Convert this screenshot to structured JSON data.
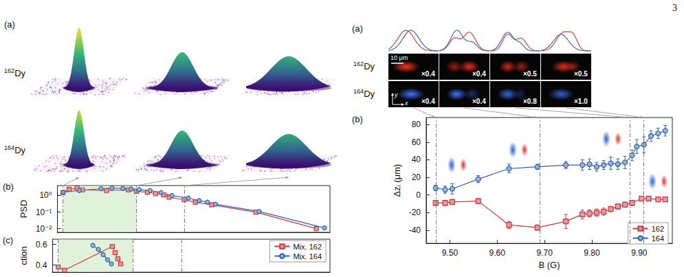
{
  "page_number": "3",
  "left_figure": {
    "panel_a": {
      "label": "(a)",
      "rows": [
        {
          "mass": "162",
          "element": "Dy"
        },
        {
          "mass": "164",
          "element": "Dy"
        }
      ]
    }
  },
  "right_figure": {
    "panel_a": {
      "label": "(a)",
      "scale_bar": "10 μm",
      "axes": [
        "x",
        "y"
      ],
      "rows": [
        {
          "mass": "162",
          "element": "Dy",
          "scales": [
            "×0.4",
            "×0.4",
            "×0.5",
            "×0.5"
          ]
        },
        {
          "mass": "164",
          "element": "Dy",
          "scales": [
            "×0.4",
            "×0.4",
            "×0.8",
            "×1.0"
          ]
        }
      ]
    }
  },
  "chart_data": [
    {
      "title": "(b)",
      "type": "line",
      "y_label": "PSD",
      "log": "y",
      "tick_labels": "y",
      "xlim": [
        0,
        100
      ],
      "ylim": [
        0.006,
        4
      ],
      "yticks": [
        {
          "value": 0.01,
          "label": "10⁻²"
        },
        {
          "value": 0.1,
          "label": "10⁻¹"
        },
        {
          "value": 1,
          "label": "10⁰"
        }
      ],
      "vlines": [
        2,
        29,
        46.5
      ],
      "shaded": [
        2,
        29
      ],
      "series": [
        {
          "name": "Mix. 162",
          "color": "#c9363e",
          "marker": "square",
          "x": [
            2,
            4.3,
            7.2,
            9.2,
            18,
            26,
            29,
            33,
            36,
            39,
            41,
            46.5,
            50.6,
            56.6,
            72.8,
            95
          ],
          "values": [
            1.5,
            2.4,
            2.8,
            2.2,
            2.0,
            2.2,
            1.8,
            1.6,
            1.3,
            1.1,
            0.8,
            0.55,
            0.4,
            0.28,
            0.1,
            0.01
          ]
        },
        {
          "name": "Mix. 164",
          "color": "#2f62ad",
          "marker": "circle",
          "x": [
            2,
            8,
            16,
            20,
            24,
            27,
            30,
            34,
            38,
            42,
            48,
            52,
            55,
            58,
            74,
            98
          ],
          "values": [
            1.6,
            2.0,
            2.6,
            2.8,
            2.7,
            2.5,
            2.3,
            2.0,
            1.5,
            1.0,
            0.7,
            0.5,
            0.4,
            0.3,
            0.11,
            0.011
          ]
        }
      ]
    },
    {
      "title": "(c)",
      "type": "line",
      "y_label": "ction",
      "tick_labels": "y",
      "legend": "upper right",
      "xlim": [
        0,
        100
      ],
      "ylim": [
        0.33,
        0.65
      ],
      "yticks": [
        0.4,
        0.6
      ],
      "vlines": [
        2,
        29,
        46.5
      ],
      "shaded": [
        2,
        29
      ],
      "series": [
        {
          "name": "Mix. 162",
          "color": "#c9363e",
          "marker": "square",
          "x": [
            2,
            4.3,
            21.5,
            22.5,
            23.5,
            24.5
          ],
          "values": [
            0.38,
            0.35,
            0.58,
            0.52,
            0.46,
            0.41
          ]
        },
        {
          "name": "Mix. 164",
          "color": "#2f62ad",
          "marker": "circle",
          "x": [
            14.5,
            16.5,
            18.2,
            19.8,
            21.2
          ],
          "values": [
            0.59,
            0.55,
            0.5,
            0.45,
            0.41
          ]
        }
      ]
    },
    {
      "title": "(b)",
      "type": "line",
      "x_label": "B (G)",
      "y_label": "Δzᵢ (μm)",
      "legend": "lower right",
      "xlim": [
        9.45,
        9.97
      ],
      "xticks": [
        {
          "value": 9.5,
          "label": "9.50"
        },
        {
          "value": 9.6,
          "label": "9.60"
        },
        {
          "value": 9.7,
          "label": "9.70"
        },
        {
          "value": 9.8,
          "label": "9.80"
        },
        {
          "value": 9.9,
          "label": "9.90"
        }
      ],
      "ylim": [
        -55,
        88
      ],
      "yticks": [
        -40,
        -20,
        0,
        20,
        40,
        60,
        80
      ],
      "vlines": [
        9.47,
        9.685,
        9.88,
        9.91
      ],
      "series": [
        {
          "name": "162",
          "color": "#c9363e",
          "marker": "square",
          "x": [
            9.47,
            9.49,
            9.505,
            9.56,
            9.625,
            9.685,
            9.745,
            9.78,
            9.795,
            9.81,
            9.825,
            9.84,
            9.855,
            9.87,
            9.885,
            9.905,
            9.92,
            9.94,
            9.955
          ],
          "values": [
            -9,
            -9,
            -8,
            -7,
            -34,
            -37,
            -30,
            -22,
            -21,
            -20,
            -19,
            -16,
            -13,
            -11,
            -9,
            -4,
            -4,
            -5,
            -5
          ],
          "errors": [
            3,
            3,
            3,
            3,
            4,
            3,
            8,
            5,
            4,
            4,
            4,
            3,
            3,
            3,
            3,
            2,
            2,
            2,
            2
          ]
        },
        {
          "name": "164",
          "color": "#2f62ad",
          "marker": "circle",
          "x": [
            9.47,
            9.49,
            9.505,
            9.56,
            9.625,
            9.685,
            9.745,
            9.78,
            9.795,
            9.81,
            9.825,
            9.84,
            9.855,
            9.87,
            9.885,
            9.895,
            9.91,
            9.925,
            9.94,
            9.955
          ],
          "values": [
            8,
            6,
            7,
            18,
            30,
            32,
            34,
            34,
            35,
            32,
            34,
            36,
            35,
            37,
            45,
            55,
            57,
            67,
            70,
            73
          ],
          "errors": [
            3,
            4,
            6,
            4,
            5,
            3,
            4,
            6,
            6,
            5,
            5,
            7,
            6,
            7,
            6,
            8,
            9,
            6,
            6,
            6
          ]
        }
      ]
    }
  ]
}
